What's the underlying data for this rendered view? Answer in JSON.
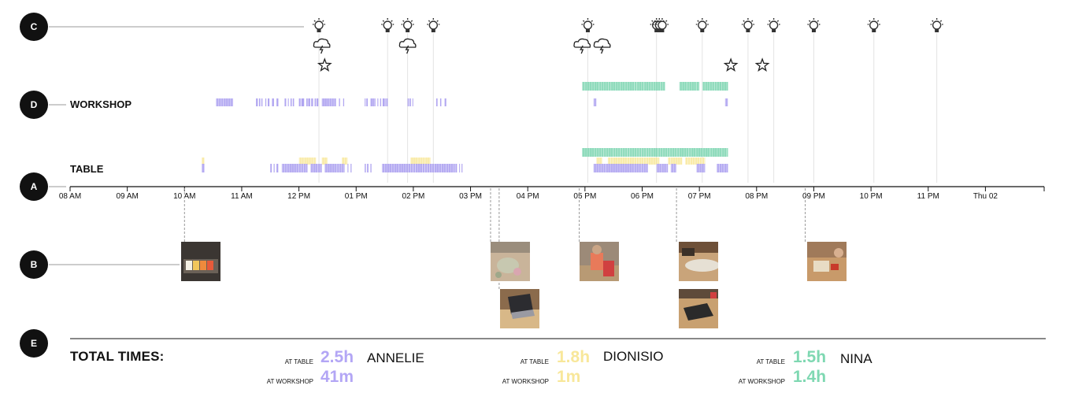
{
  "circles": {
    "c": "C",
    "d": "D",
    "a": "A",
    "b": "B",
    "e": "E"
  },
  "row_labels": {
    "workshop": "WORKSHOP",
    "table": "TABLE"
  },
  "chart_data": {
    "type": "timeline",
    "x_ticks": [
      "08 AM",
      "09 AM",
      "10 AM",
      "11 AM",
      "12 PM",
      "01 PM",
      "02 PM",
      "03 PM",
      "04 PM",
      "05 PM",
      "06 PM",
      "07 PM",
      "08 PM",
      "09 PM",
      "10 PM",
      "11 PM",
      "Thu 02"
    ],
    "x_range_hours": [
      8,
      25
    ],
    "people_colors": {
      "ANNELIE": "#a89cf0",
      "DIONISIO": "#f8e79a",
      "NINA": "#78d3ae"
    },
    "events": {
      "ideas_hours": [
        12.35,
        13.55,
        13.9,
        14.35,
        17.05,
        18.25,
        18.3,
        18.35,
        19.05,
        19.85,
        20.3
      ],
      "ideas_top_hours": [
        12.35,
        13.55,
        13.9,
        14.35,
        17.05,
        18.25,
        19.05,
        19.85,
        20.3,
        21.0,
        22.05,
        23.15
      ],
      "storms_hours": [
        12.4,
        13.9,
        16.95,
        17.3
      ],
      "stars_hours": [
        12.45,
        19.55,
        20.1
      ]
    },
    "workshop": {
      "NINA": [
        [
          16.95,
          18.4,
          "dense"
        ],
        [
          18.65,
          19.0,
          "dense"
        ],
        [
          19.05,
          19.3,
          "dense"
        ],
        [
          19.3,
          19.5,
          "dense"
        ]
      ],
      "ANNELIE": [
        [
          10.55,
          10.85,
          "dense"
        ],
        [
          11.25,
          11.65,
          "sparse"
        ],
        [
          11.75,
          11.9,
          "sparse"
        ],
        [
          12.0,
          12.35,
          "sparse"
        ],
        [
          12.4,
          12.65,
          "dense"
        ],
        [
          12.7,
          12.8,
          "sparse"
        ],
        [
          13.15,
          13.55,
          "sparse"
        ],
        [
          13.9,
          14.05,
          "sparse"
        ],
        [
          14.4,
          14.55,
          "sparse"
        ],
        [
          17.15,
          17.2,
          "dense"
        ],
        [
          19.45,
          19.5,
          "dense"
        ]
      ]
    },
    "table": {
      "NINA": [
        [
          16.95,
          19.5,
          "dense"
        ]
      ],
      "DIONISIO": [
        [
          10.3,
          10.35,
          "dense"
        ],
        [
          12.0,
          12.3,
          "dense"
        ],
        [
          12.4,
          12.5,
          "dense"
        ],
        [
          12.75,
          12.85,
          "dense"
        ],
        [
          13.95,
          14.3,
          "dense"
        ],
        [
          17.2,
          17.3,
          "dense"
        ],
        [
          17.4,
          18.3,
          "dense"
        ],
        [
          18.45,
          18.7,
          "dense"
        ],
        [
          18.75,
          19.1,
          "dense"
        ]
      ],
      "ANNELIE": [
        [
          10.3,
          10.35,
          "dense"
        ],
        [
          11.5,
          11.65,
          "sparse"
        ],
        [
          11.7,
          12.15,
          "dense"
        ],
        [
          12.2,
          12.4,
          "dense"
        ],
        [
          12.45,
          12.8,
          "dense"
        ],
        [
          12.85,
          12.95,
          "sparse"
        ],
        [
          13.15,
          13.3,
          "sparse"
        ],
        [
          13.45,
          14.7,
          "dense"
        ],
        [
          14.7,
          14.85,
          "sparse"
        ],
        [
          17.15,
          18.1,
          "dense"
        ],
        [
          18.25,
          18.45,
          "dense"
        ],
        [
          18.5,
          18.6,
          "dense"
        ],
        [
          18.95,
          19.1,
          "dense"
        ],
        [
          19.3,
          19.5,
          "dense"
        ]
      ]
    },
    "photo_hours": [
      10.0,
      15.35,
      15.5,
      16.9,
      18.6,
      18.6,
      20.85
    ]
  },
  "totals": {
    "title": "TOTAL TIMES:",
    "people": [
      {
        "name": "ANNELIE",
        "table_label": "AT TABLE",
        "table_value": "2.5h",
        "workshop_label": "AT WORKSHOP",
        "workshop_value": "41m",
        "color": "#b3a6f5"
      },
      {
        "name": "DIONISIO",
        "table_label": "AT TABLE",
        "table_value": "1.8h",
        "workshop_label": "AT WORKSHOP",
        "workshop_value": "1m",
        "color": "#f8e79a"
      },
      {
        "name": "NINA",
        "table_label": "AT TABLE",
        "table_value": "1.5h",
        "workshop_label": "AT WORKSHOP",
        "workshop_value": "1.4h",
        "color": "#7fd8b2"
      }
    ]
  }
}
